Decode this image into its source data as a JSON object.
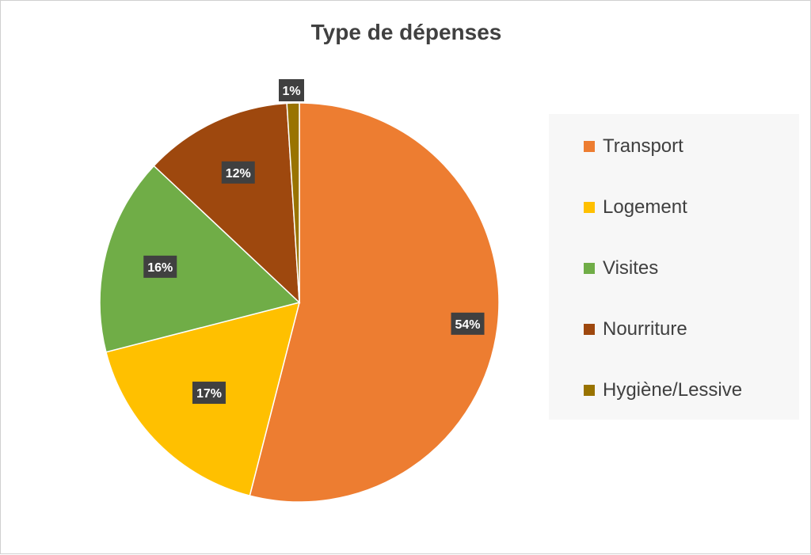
{
  "chart_data": {
    "type": "pie",
    "title": "Type de dépenses",
    "slices": [
      {
        "label": "Transport",
        "value": 54,
        "display": "54%",
        "color": "#ED7D31"
      },
      {
        "label": "Logement",
        "value": 17,
        "display": "17%",
        "color": "#FFC000"
      },
      {
        "label": "Visites",
        "value": 16,
        "display": "16%",
        "color": "#70AD47"
      },
      {
        "label": "Nourriture",
        "value": 12,
        "display": "12%",
        "color": "#9E480E"
      },
      {
        "label": "Hygiène/Lessive",
        "value": 1,
        "display": "1%",
        "color": "#997300"
      }
    ],
    "legend_position": "right",
    "data_label_style": {
      "background": "#404040",
      "text_color": "#ffffff"
    }
  }
}
